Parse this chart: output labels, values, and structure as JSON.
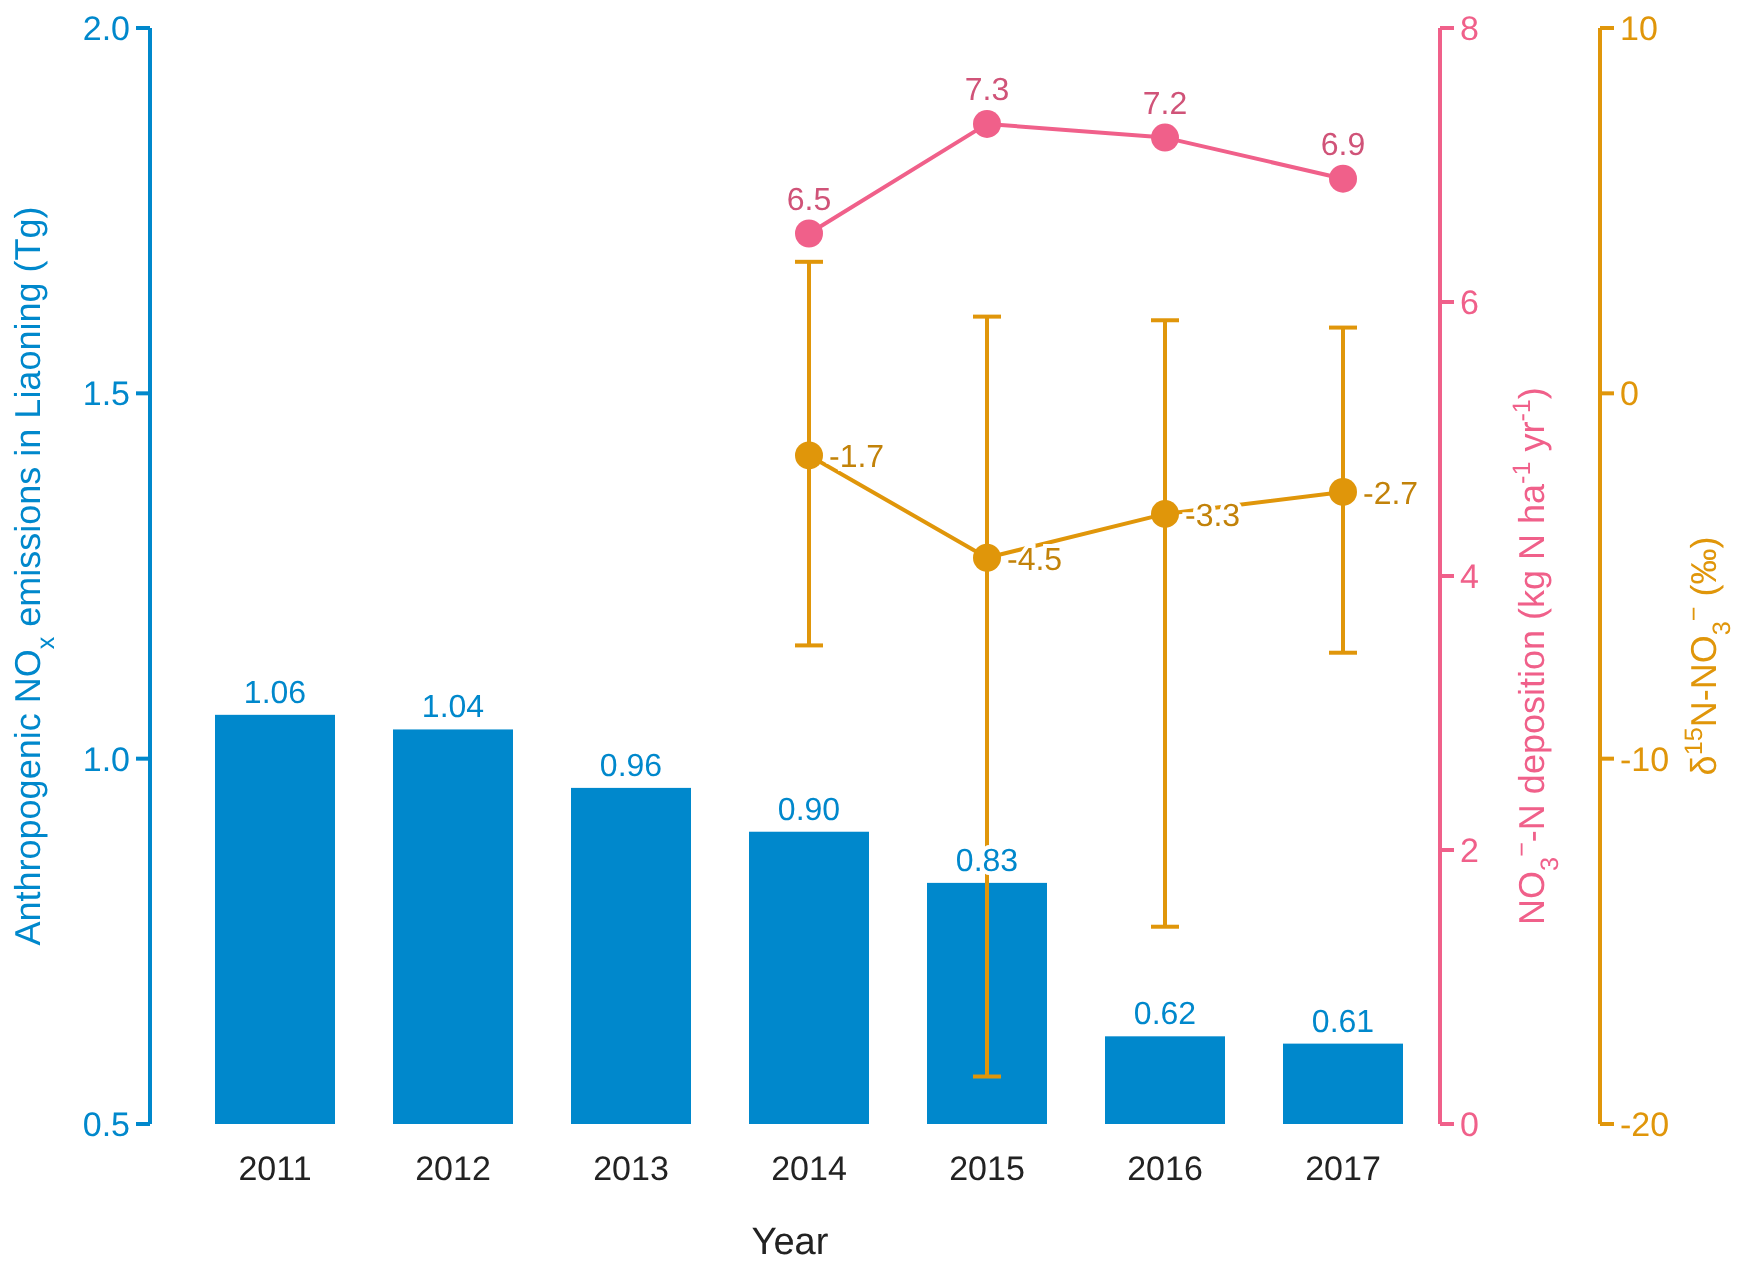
{
  "chart_data": {
    "type": "bar",
    "categories": [
      "2011",
      "2012",
      "2013",
      "2014",
      "2015",
      "2016",
      "2017"
    ],
    "xlabel": "Year",
    "ylabel": "Anthropogenic NO$_{x}$ emissions in Liaoning (Tg)",
    "y2label": "NO$_{3}$$^{−}$-N deposition (kg N ha$^{-1}$ yr$^{-1}$)",
    "y3label": "δ$^{15}$N-NO$_{3}$$^{−}$ (‰)",
    "ylim": [
      0.5,
      2.0
    ],
    "yticks": [
      {
        "value": 0.5,
        "label": "0.5"
      },
      {
        "value": 1.0,
        "label": "1.0"
      },
      {
        "value": 1.5,
        "label": "1.5"
      },
      {
        "value": 2.0,
        "label": "2.0"
      }
    ],
    "y2lim": [
      0,
      8
    ],
    "y2ticks": [
      0,
      2,
      4,
      6,
      8
    ],
    "y3lim": [
      -20,
      10
    ],
    "y3ticks": [
      -20,
      -10,
      0,
      10
    ],
    "data_labels": true,
    "marker": "circle",
    "series": [
      {
        "color": "#0088cc",
        "values": [
          1.06,
          1.04,
          0.96,
          0.9,
          0.83,
          0.62,
          0.61
        ],
        "value_labels": [
          "1.06",
          "1.04",
          "0.96",
          "0.90",
          "0.83",
          "0.62",
          "0.61"
        ]
      },
      {
        "type": "line",
        "axis": "y2",
        "color": "#f0608a",
        "values": [
          null,
          null,
          null,
          6.5,
          7.3,
          7.2,
          6.9
        ]
      },
      {
        "type": "line",
        "axis": "y3",
        "color": "#e0960a",
        "values": [
          null,
          null,
          null,
          -1.7,
          -4.5,
          -3.3,
          -2.7
        ],
        "errors": [
          null,
          null,
          null,
          [
            -6.9,
            3.6
          ],
          [
            -18.7,
            2.1
          ],
          [
            -14.6,
            2.0
          ],
          [
            -7.1,
            1.8
          ]
        ]
      }
    ]
  }
}
